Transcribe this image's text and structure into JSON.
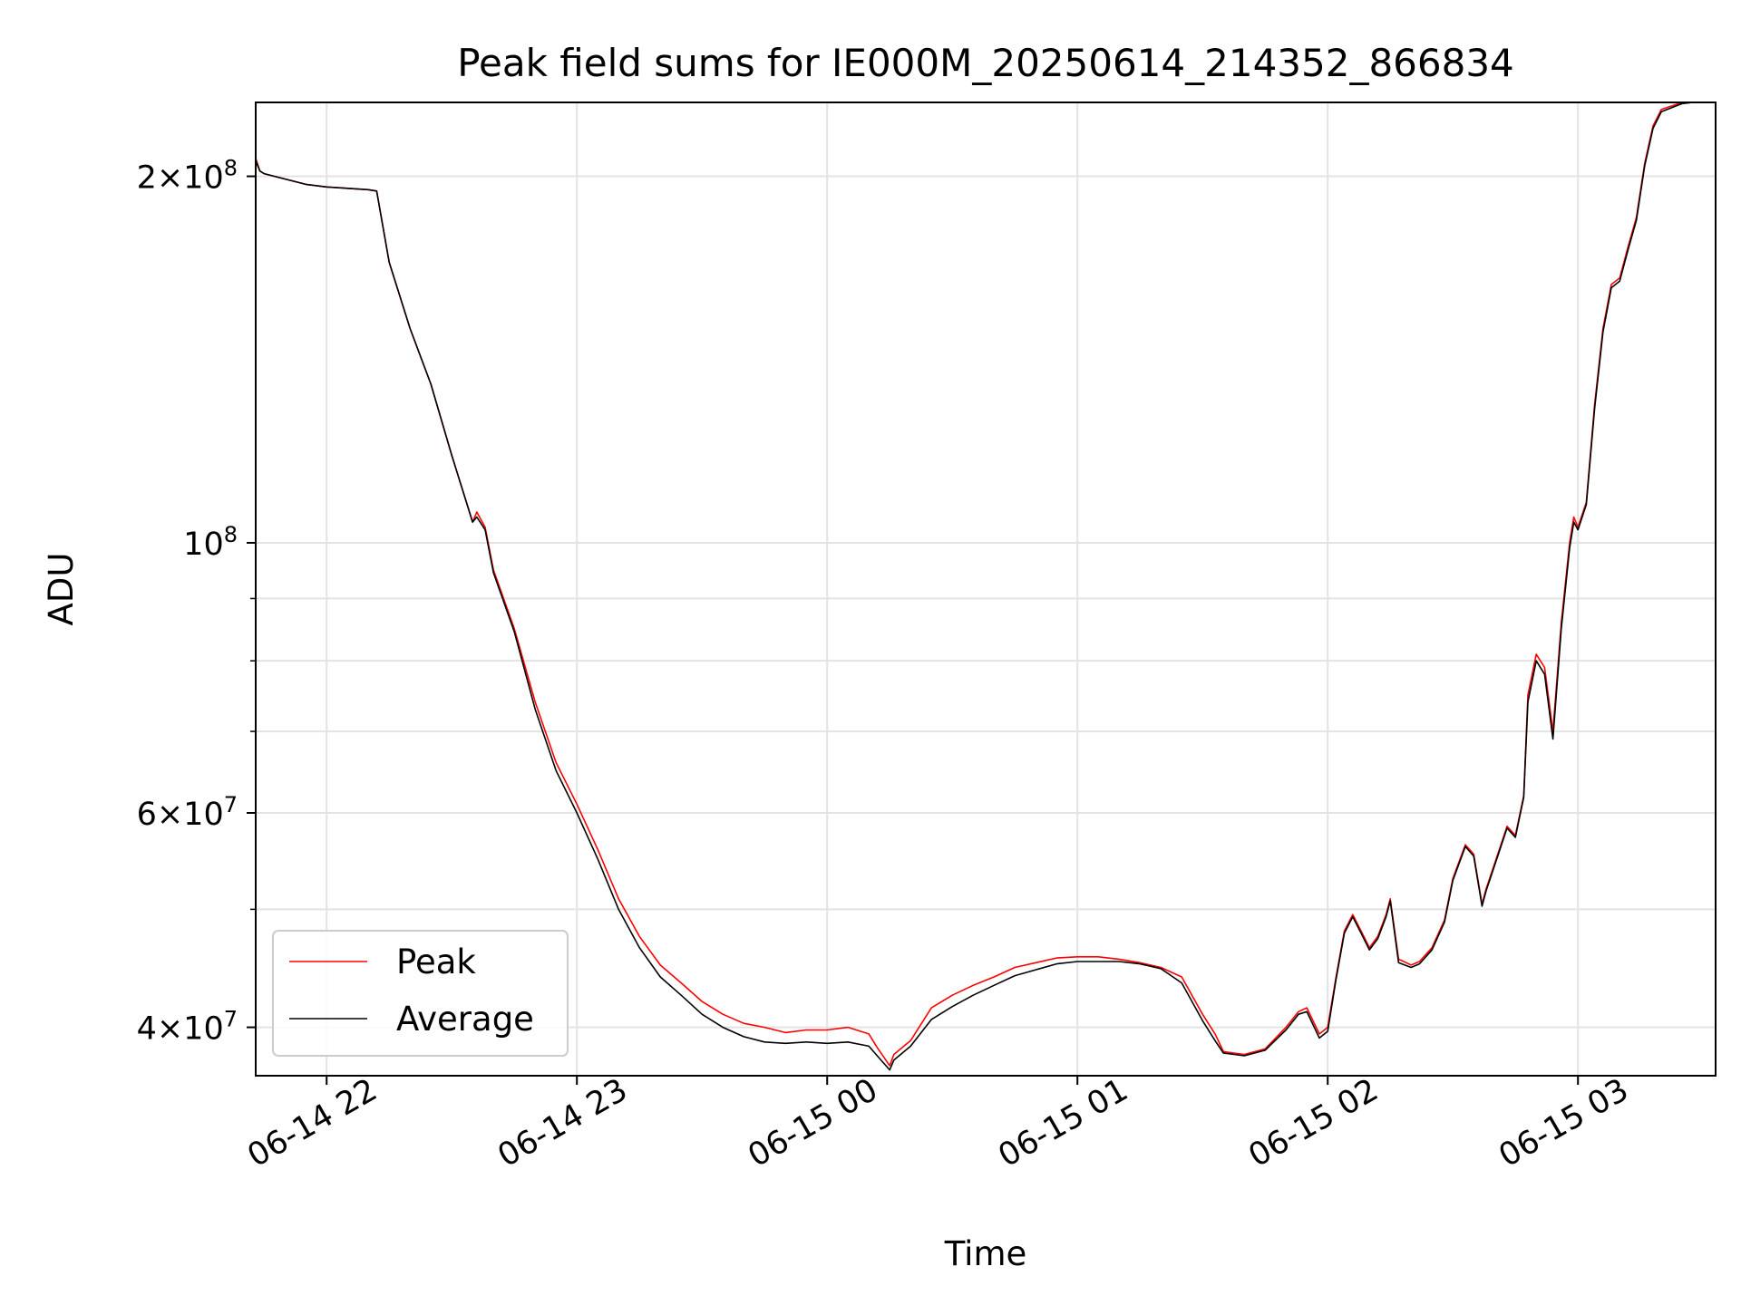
{
  "chart_data": {
    "type": "line",
    "title": "Peak field sums for IE000M_20250614_214352_866834",
    "xlabel": "Time",
    "ylabel": "ADU",
    "y_scale": "log",
    "ylim": [
      36500000,
      230000000
    ],
    "xlim": [
      "2025-06-14 21:43",
      "2025-06-15 03:33"
    ],
    "grid": true,
    "legend_position": "lower-left",
    "x_ticks": [
      {
        "value": "2025-06-14 22:00",
        "label": "06-14 22"
      },
      {
        "value": "2025-06-14 23:00",
        "label": "06-14 23"
      },
      {
        "value": "2025-06-15 00:00",
        "label": "06-15 00"
      },
      {
        "value": "2025-06-15 01:00",
        "label": "06-15 01"
      },
      {
        "value": "2025-06-15 02:00",
        "label": "06-15 02"
      },
      {
        "value": "2025-06-15 03:00",
        "label": "06-15 03"
      }
    ],
    "y_ticks": [
      {
        "value": 40000000,
        "base": "4",
        "exp": "7"
      },
      {
        "value": 60000000,
        "base": "6",
        "exp": "7"
      },
      {
        "value": 100000000,
        "base": "",
        "exp": "8"
      },
      {
        "value": 200000000,
        "base": "2",
        "exp": "8"
      }
    ],
    "y_minor_ticks": [
      50000000,
      70000000,
      80000000,
      90000000
    ],
    "series": [
      {
        "name": "Peak",
        "color": "#ff0000",
        "x": [
          "2025-06-14 21:43",
          "2025-06-14 21:44",
          "2025-06-14 21:45",
          "2025-06-14 21:50",
          "2025-06-14 21:55",
          "2025-06-14 22:00",
          "2025-06-14 22:05",
          "2025-06-14 22:10",
          "2025-06-14 22:12",
          "2025-06-14 22:15",
          "2025-06-14 22:20",
          "2025-06-14 22:25",
          "2025-06-14 22:30",
          "2025-06-14 22:35",
          "2025-06-14 22:36",
          "2025-06-14 22:38",
          "2025-06-14 22:40",
          "2025-06-14 22:45",
          "2025-06-14 22:50",
          "2025-06-14 22:55",
          "2025-06-14 23:00",
          "2025-06-14 23:05",
          "2025-06-14 23:10",
          "2025-06-14 23:15",
          "2025-06-14 23:20",
          "2025-06-14 23:25",
          "2025-06-14 23:30",
          "2025-06-14 23:35",
          "2025-06-14 23:40",
          "2025-06-14 23:45",
          "2025-06-14 23:50",
          "2025-06-14 23:55",
          "2025-06-15 00:00",
          "2025-06-15 00:05",
          "2025-06-15 00:10",
          "2025-06-15 00:12",
          "2025-06-15 00:15",
          "2025-06-15 00:16",
          "2025-06-15 00:20",
          "2025-06-15 00:25",
          "2025-06-15 00:30",
          "2025-06-15 00:35",
          "2025-06-15 00:40",
          "2025-06-15 00:45",
          "2025-06-15 00:50",
          "2025-06-15 00:55",
          "2025-06-15 01:00",
          "2025-06-15 01:05",
          "2025-06-15 01:10",
          "2025-06-15 01:15",
          "2025-06-15 01:20",
          "2025-06-15 01:25",
          "2025-06-15 01:30",
          "2025-06-15 01:33",
          "2025-06-15 01:35",
          "2025-06-15 01:40",
          "2025-06-15 01:45",
          "2025-06-15 01:50",
          "2025-06-15 01:53",
          "2025-06-15 01:55",
          "2025-06-15 01:58",
          "2025-06-15 02:00",
          "2025-06-15 02:02",
          "2025-06-15 02:04",
          "2025-06-15 02:06",
          "2025-06-15 02:08",
          "2025-06-15 02:10",
          "2025-06-15 02:12",
          "2025-06-15 02:14",
          "2025-06-15 02:15",
          "2025-06-15 02:17",
          "2025-06-15 02:20",
          "2025-06-15 02:22",
          "2025-06-15 02:25",
          "2025-06-15 02:28",
          "2025-06-15 02:30",
          "2025-06-15 02:33",
          "2025-06-15 02:35",
          "2025-06-15 02:37",
          "2025-06-15 02:38",
          "2025-06-15 02:40",
          "2025-06-15 02:43",
          "2025-06-15 02:45",
          "2025-06-15 02:47",
          "2025-06-15 02:48",
          "2025-06-15 02:50",
          "2025-06-15 02:52",
          "2025-06-15 02:54",
          "2025-06-15 02:56",
          "2025-06-15 02:58",
          "2025-06-15 02:59",
          "2025-06-15 03:00",
          "2025-06-15 03:02",
          "2025-06-15 03:04",
          "2025-06-15 03:06",
          "2025-06-15 03:08",
          "2025-06-15 03:10",
          "2025-06-15 03:12",
          "2025-06-15 03:14",
          "2025-06-15 03:16",
          "2025-06-15 03:18",
          "2025-06-15 03:20",
          "2025-06-15 03:25",
          "2025-06-15 03:30",
          "2025-06-15 03:33"
        ],
        "y": [
          207000000,
          202000000,
          201000000,
          199000000,
          197000000,
          196000000,
          195500000,
          195000000,
          194500000,
          170000000,
          150000000,
          135000000,
          118000000,
          104000000,
          106000000,
          103000000,
          95000000,
          85000000,
          74000000,
          66000000,
          61000000,
          56000000,
          51000000,
          47500000,
          45000000,
          43500000,
          42000000,
          41000000,
          40300000,
          40000000,
          39600000,
          39800000,
          39800000,
          40000000,
          39500000,
          38500000,
          37200000,
          38000000,
          39000000,
          41500000,
          42500000,
          43300000,
          44000000,
          44800000,
          45200000,
          45600000,
          45700000,
          45700000,
          45500000,
          45200000,
          44800000,
          44000000,
          41000000,
          39500000,
          38200000,
          38000000,
          38400000,
          40000000,
          41200000,
          41500000,
          39500000,
          40000000,
          44000000,
          48000000,
          49500000,
          48000000,
          46500000,
          47500000,
          49500000,
          51000000,
          45500000,
          45000000,
          45300000,
          46500000,
          49000000,
          53000000,
          56500000,
          55500000,
          50500000,
          52000000,
          54500000,
          58500000,
          57500000,
          62000000,
          75000000,
          81000000,
          79000000,
          70000000,
          86000000,
          100000000,
          105000000,
          103000000,
          108000000,
          130000000,
          150000000,
          163000000,
          165000000,
          175000000,
          185000000,
          205000000,
          220000000,
          227000000,
          230000000,
          231000000,
          231000000
        ]
      },
      {
        "name": "Average",
        "color": "#000000",
        "x": [
          "2025-06-14 21:43",
          "2025-06-14 21:44",
          "2025-06-14 21:45",
          "2025-06-14 21:50",
          "2025-06-14 21:55",
          "2025-06-14 22:00",
          "2025-06-14 22:05",
          "2025-06-14 22:10",
          "2025-06-14 22:12",
          "2025-06-14 22:15",
          "2025-06-14 22:20",
          "2025-06-14 22:25",
          "2025-06-14 22:30",
          "2025-06-14 22:35",
          "2025-06-14 22:36",
          "2025-06-14 22:38",
          "2025-06-14 22:40",
          "2025-06-14 22:45",
          "2025-06-14 22:50",
          "2025-06-14 22:55",
          "2025-06-14 23:00",
          "2025-06-14 23:05",
          "2025-06-14 23:10",
          "2025-06-14 23:15",
          "2025-06-14 23:20",
          "2025-06-14 23:25",
          "2025-06-14 23:30",
          "2025-06-14 23:35",
          "2025-06-14 23:40",
          "2025-06-14 23:45",
          "2025-06-14 23:50",
          "2025-06-14 23:55",
          "2025-06-15 00:00",
          "2025-06-15 00:05",
          "2025-06-15 00:10",
          "2025-06-15 00:12",
          "2025-06-15 00:15",
          "2025-06-15 00:16",
          "2025-06-15 00:20",
          "2025-06-15 00:25",
          "2025-06-15 00:30",
          "2025-06-15 00:35",
          "2025-06-15 00:40",
          "2025-06-15 00:45",
          "2025-06-15 00:50",
          "2025-06-15 00:55",
          "2025-06-15 01:00",
          "2025-06-15 01:05",
          "2025-06-15 01:10",
          "2025-06-15 01:15",
          "2025-06-15 01:20",
          "2025-06-15 01:25",
          "2025-06-15 01:30",
          "2025-06-15 01:33",
          "2025-06-15 01:35",
          "2025-06-15 01:40",
          "2025-06-15 01:45",
          "2025-06-15 01:50",
          "2025-06-15 01:53",
          "2025-06-15 01:55",
          "2025-06-15 01:58",
          "2025-06-15 02:00",
          "2025-06-15 02:02",
          "2025-06-15 02:04",
          "2025-06-15 02:06",
          "2025-06-15 02:08",
          "2025-06-15 02:10",
          "2025-06-15 02:12",
          "2025-06-15 02:14",
          "2025-06-15 02:15",
          "2025-06-15 02:17",
          "2025-06-15 02:20",
          "2025-06-15 02:22",
          "2025-06-15 02:25",
          "2025-06-15 02:28",
          "2025-06-15 02:30",
          "2025-06-15 02:33",
          "2025-06-15 02:35",
          "2025-06-15 02:37",
          "2025-06-15 02:38",
          "2025-06-15 02:40",
          "2025-06-15 02:43",
          "2025-06-15 02:45",
          "2025-06-15 02:47",
          "2025-06-15 02:48",
          "2025-06-15 02:50",
          "2025-06-15 02:52",
          "2025-06-15 02:54",
          "2025-06-15 02:56",
          "2025-06-15 02:58",
          "2025-06-15 02:59",
          "2025-06-15 03:00",
          "2025-06-15 03:02",
          "2025-06-15 03:04",
          "2025-06-15 03:06",
          "2025-06-15 03:08",
          "2025-06-15 03:10",
          "2025-06-15 03:12",
          "2025-06-15 03:14",
          "2025-06-15 03:16",
          "2025-06-15 03:18",
          "2025-06-15 03:20",
          "2025-06-15 03:25",
          "2025-06-15 03:30",
          "2025-06-15 03:33"
        ],
        "y": [
          206000000,
          202000000,
          201000000,
          199000000,
          197000000,
          196000000,
          195500000,
          195000000,
          194500000,
          170000000,
          150000000,
          135000000,
          118000000,
          104000000,
          105000000,
          102500000,
          94500000,
          84500000,
          73000000,
          65000000,
          60000000,
          55000000,
          50000000,
          46500000,
          44000000,
          42500000,
          41000000,
          40000000,
          39300000,
          38900000,
          38800000,
          38900000,
          38800000,
          38900000,
          38600000,
          37900000,
          36900000,
          37600000,
          38600000,
          40600000,
          41600000,
          42500000,
          43300000,
          44100000,
          44600000,
          45100000,
          45300000,
          45300000,
          45300000,
          45100000,
          44700000,
          43500000,
          40500000,
          39000000,
          38100000,
          37900000,
          38300000,
          39800000,
          41000000,
          41200000,
          39200000,
          39700000,
          43800000,
          47800000,
          49300000,
          47800000,
          46300000,
          47300000,
          49300000,
          50800000,
          45200000,
          44800000,
          45100000,
          46300000,
          48800000,
          52800000,
          56300000,
          55300000,
          50300000,
          51800000,
          54300000,
          58300000,
          57300000,
          61800000,
          74000000,
          80000000,
          78000000,
          69000000,
          85000000,
          99000000,
          104000000,
          102500000,
          107500000,
          129000000,
          149000000,
          162000000,
          164000000,
          174000000,
          184000000,
          204000000,
          219000000,
          226000000,
          229500000,
          230500000,
          231000000
        ]
      }
    ]
  }
}
